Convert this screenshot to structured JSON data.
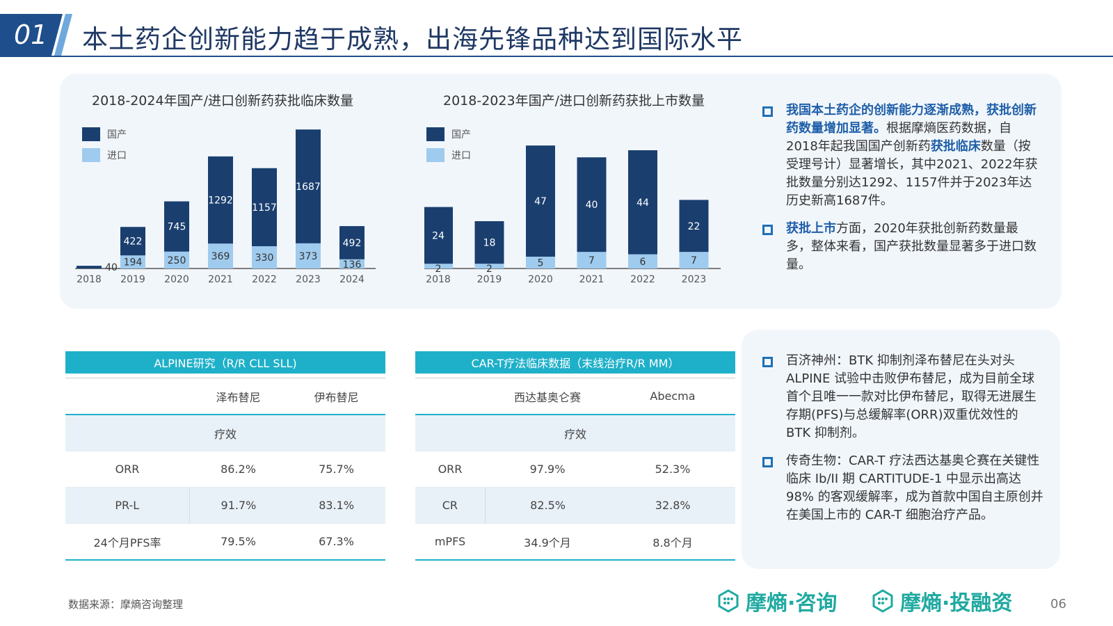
{
  "header": {
    "number": "01",
    "title": "本土药企创新能力趋于成熟，出海先锋品种达到国际水平"
  },
  "colors": {
    "primary": "#1f4e8c",
    "domestic": "#1a3f6f",
    "import": "#9fcbee",
    "teal": "#1fb0c9",
    "logo": "#1fa9a0"
  },
  "chart_data": [
    {
      "type": "bar",
      "title": "2018-2024年国产/进口创新药获批临床数量",
      "categories": [
        "2018",
        "2019",
        "2020",
        "2021",
        "2022",
        "2023",
        "2024"
      ],
      "series": [
        {
          "name": "国产",
          "values": [
            40,
            422,
            745,
            1292,
            1157,
            1687,
            492
          ]
        },
        {
          "name": "进口",
          "values": [
            0,
            194,
            250,
            369,
            330,
            373,
            136
          ]
        }
      ],
      "labels": {
        "domestic": [
          "40",
          "422",
          "745",
          "1292",
          "1157",
          "1687",
          "492"
        ],
        "import": [
          "",
          "194",
          "250",
          "369",
          "330",
          "373",
          "136"
        ]
      },
      "legend": "top-left",
      "grid": false
    },
    {
      "type": "bar",
      "title": "2018-2023年国产/进口创新药获批上市数量",
      "categories": [
        "2018",
        "2019",
        "2020",
        "2021",
        "2022",
        "2023"
      ],
      "series": [
        {
          "name": "国产",
          "values": [
            24,
            18,
            47,
            40,
            44,
            22
          ]
        },
        {
          "name": "进口",
          "values": [
            2,
            2,
            5,
            7,
            6,
            7
          ]
        }
      ],
      "labels": {
        "domestic": [
          "24",
          "18",
          "47",
          "40",
          "44",
          "22"
        ],
        "import": [
          "2",
          "2",
          "5",
          "7",
          "6",
          "7"
        ]
      },
      "legend": "top-left",
      "grid": false
    }
  ],
  "legend": {
    "domestic": "国产",
    "import": "进口"
  },
  "bullets_top": [
    {
      "parts": [
        {
          "t": "我国本土药企的创新能力逐渐成熟，获批创新药数量增加显著。",
          "hl": true
        },
        {
          "t": "根据摩熵医药数据，自2018年起我国国产创新药",
          "hl": false
        },
        {
          "t": "获批临床",
          "hl": true
        },
        {
          "t": "数量（按受理号计）显著增长，其中2021、2022年获批数量分别达1292、1157件并于2023年达历史新高1687件。",
          "hl": false
        }
      ]
    },
    {
      "parts": [
        {
          "t": "获批上市",
          "hl": true
        },
        {
          "t": "方面，2020年获批创新药数量最多，整体来看，国产获批数量显著多于进口数量。",
          "hl": false
        }
      ]
    }
  ],
  "bullets_bottom": [
    "百济神州：BTK 抑制剂泽布替尼在头对头 ALPINE 试验中击败伊布替尼，成为目前全球首个且唯一一款对比伊布替尼，取得无进展生存期(PFS)与总缓解率(ORR)双重优效性的 BTK 抑制剂。",
    "传奇生物：CAR-T 疗法西达基奥仑赛在关键性临床 Ib/II 期 CARTITUDE-1 中显示出高达 98% 的客观缓解率，成为首款中国自主原创并在美国上市的 CAR-T 细胞治疗产品。"
  ],
  "table1": {
    "title": "ALPINE研究（R/R CLL SLL)",
    "columns": [
      "",
      "泽布替尼",
      "伊布替尼"
    ],
    "section": "疗效",
    "rows": [
      [
        "ORR",
        "86.2%",
        "75.7%"
      ],
      [
        "PR-L",
        "91.7%",
        "83.1%"
      ],
      [
        "24个月PFS率",
        "79.5%",
        "67.3%"
      ]
    ]
  },
  "table2": {
    "title": "CAR-T疗法临床数据（末线治疗R/R MM）",
    "columns": [
      "",
      "西达基奥仑赛",
      "Abecma"
    ],
    "section": "疗效",
    "rows": [
      [
        "ORR",
        "97.9%",
        "52.3%"
      ],
      [
        "CR",
        "82.5%",
        "32.8%"
      ],
      [
        "mPFS",
        "34.9个月",
        "8.8个月"
      ]
    ]
  },
  "footer": {
    "source": "数据来源：摩熵咨询整理",
    "logo1": "摩熵·咨询",
    "logo2": "摩熵·投融资",
    "page": "06"
  }
}
